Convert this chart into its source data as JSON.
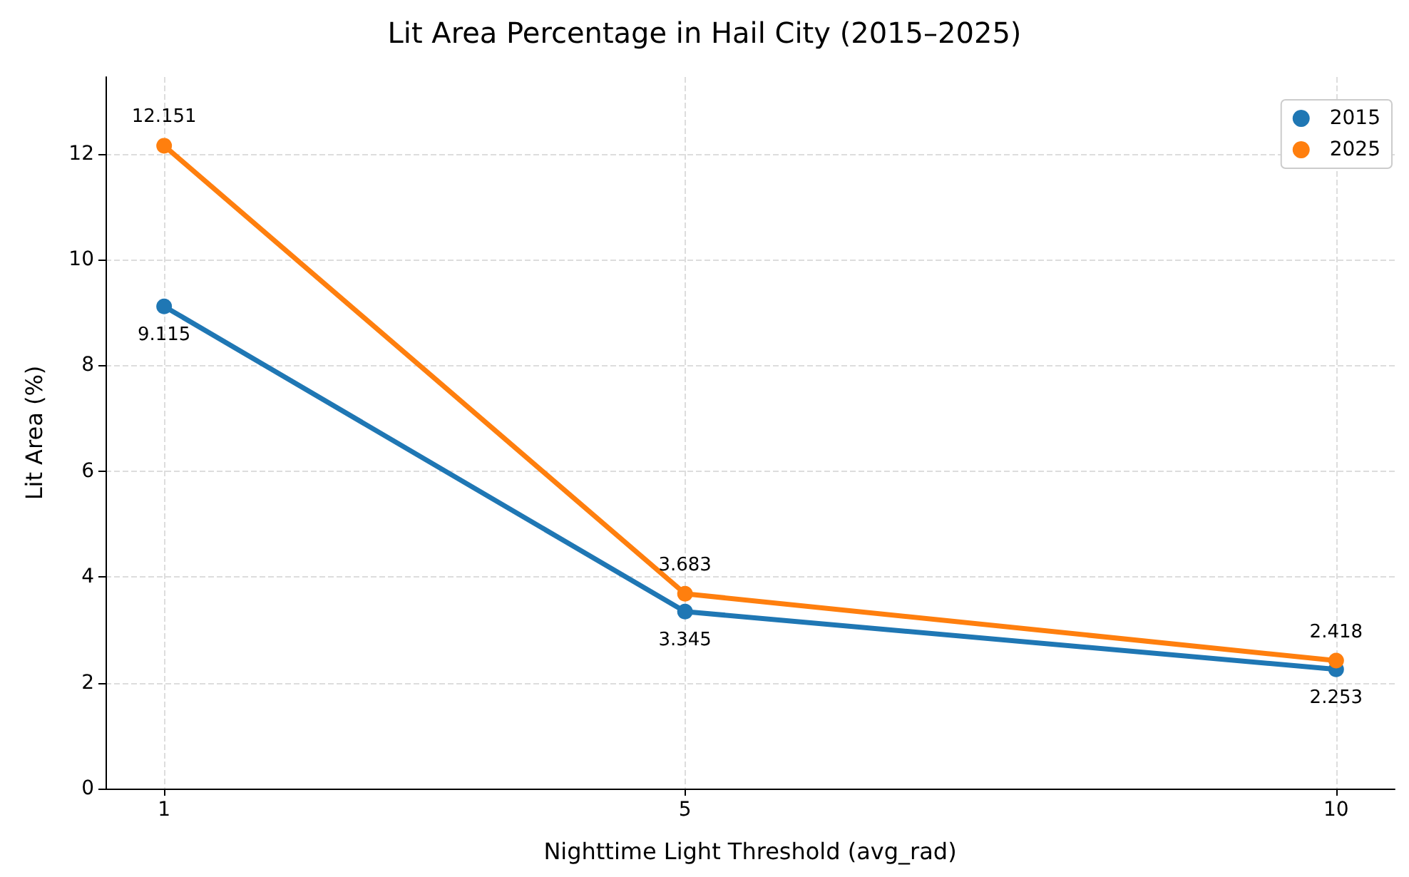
{
  "chart_data": {
    "type": "line",
    "title": "Lit Area Percentage in Hail City (2015–2025)",
    "xlabel": "Nighttime Light Threshold (avg_rad)",
    "ylabel": "Lit Area (%)",
    "x": [
      1,
      5,
      10
    ],
    "series": [
      {
        "name": "2015",
        "color": "#1f77b4",
        "values": [
          9.115,
          3.345,
          2.253
        ]
      },
      {
        "name": "2025",
        "color": "#ff7f0e",
        "values": [
          12.151,
          3.683,
          2.418
        ]
      }
    ],
    "xlim": [
      0.55,
      10.45
    ],
    "xticks": [
      1,
      5,
      10
    ],
    "ylim": [
      0,
      13.45
    ],
    "yticks": [
      0,
      2,
      4,
      6,
      8,
      10,
      12
    ],
    "grid": true,
    "legend": "top right",
    "marker": "circle",
    "line_style": "solid",
    "data_labels": true
  }
}
